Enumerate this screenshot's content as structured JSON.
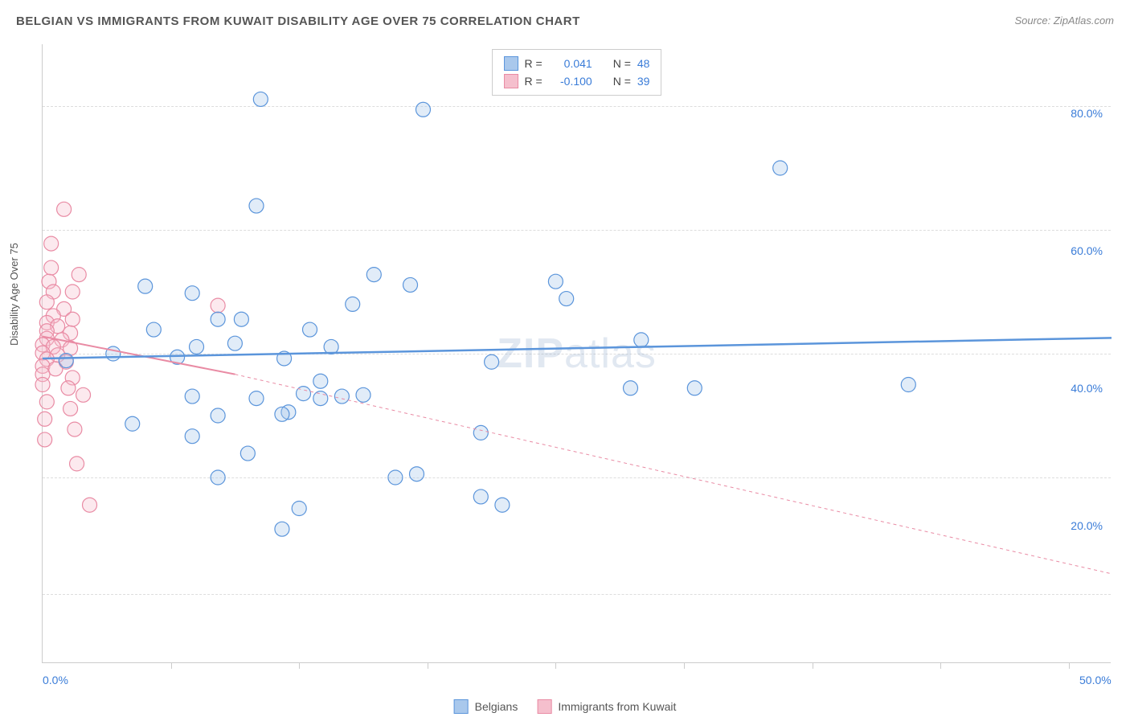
{
  "header": {
    "title": "BELGIAN VS IMMIGRANTS FROM KUWAIT DISABILITY AGE OVER 75 CORRELATION CHART",
    "source": "Source: ZipAtlas.com"
  },
  "chart": {
    "type": "scatter",
    "ylabel": "Disability Age Over 75",
    "background_color": "#ffffff",
    "grid_color": "#dddddd",
    "axis_color": "#cccccc",
    "watermark": "ZIPatlas",
    "xlim": [
      0,
      50
    ],
    "ylim": [
      0,
      90
    ],
    "x_tick_positions": [
      6,
      12,
      18,
      24,
      30,
      36,
      42,
      48
    ],
    "x_tick_labels": [
      {
        "pos": 0,
        "text": "0.0%"
      },
      {
        "pos": 50,
        "text": "50.0%"
      }
    ],
    "y_tick_labels": [
      {
        "pos": 20,
        "text": "20.0%"
      },
      {
        "pos": 40,
        "text": "40.0%"
      },
      {
        "pos": 60,
        "text": "60.0%"
      },
      {
        "pos": 80,
        "text": "80.0%"
      }
    ],
    "y_gridlines": [
      10,
      27,
      45,
      63,
      81
    ],
    "marker_radius": 9,
    "marker_fill_opacity": 0.35,
    "series": [
      {
        "name": "Belgians",
        "color_stroke": "#5b95db",
        "color_fill": "#a9c8ec",
        "R": "0.041",
        "N": "48",
        "points": [
          [
            10.2,
            82.0
          ],
          [
            17.8,
            80.5
          ],
          [
            34.5,
            72.0
          ],
          [
            10.0,
            66.5
          ],
          [
            4.8,
            54.8
          ],
          [
            7.0,
            53.8
          ],
          [
            15.5,
            56.5
          ],
          [
            17.2,
            55.0
          ],
          [
            14.5,
            52.2
          ],
          [
            8.2,
            50.0
          ],
          [
            9.3,
            50.0
          ],
          [
            5.2,
            48.5
          ],
          [
            12.5,
            48.5
          ],
          [
            9.0,
            46.5
          ],
          [
            7.2,
            46.0
          ],
          [
            13.5,
            46.0
          ],
          [
            3.3,
            45.0
          ],
          [
            6.3,
            44.5
          ],
          [
            11.3,
            44.3
          ],
          [
            1.1,
            44.0
          ],
          [
            13.0,
            41.0
          ],
          [
            7.0,
            38.8
          ],
          [
            10.0,
            38.5
          ],
          [
            12.2,
            39.2
          ],
          [
            13.0,
            38.5
          ],
          [
            14.0,
            38.8
          ],
          [
            11.5,
            36.5
          ],
          [
            11.2,
            36.2
          ],
          [
            8.2,
            36.0
          ],
          [
            4.2,
            34.8
          ],
          [
            7.0,
            33.0
          ],
          [
            9.6,
            30.5
          ],
          [
            8.2,
            27.0
          ],
          [
            16.5,
            27.0
          ],
          [
            12.0,
            22.5
          ],
          [
            11.2,
            19.5
          ],
          [
            15.0,
            39.0
          ],
          [
            17.5,
            27.5
          ],
          [
            20.5,
            33.5
          ],
          [
            20.5,
            24.2
          ],
          [
            21.0,
            43.8
          ],
          [
            21.5,
            23.0
          ],
          [
            24.0,
            55.5
          ],
          [
            24.5,
            53.0
          ],
          [
            27.5,
            40.0
          ],
          [
            28.0,
            47.0
          ],
          [
            30.5,
            40.0
          ],
          [
            40.5,
            40.5
          ]
        ],
        "regression": {
          "x1": 0,
          "y1": 44.3,
          "x2": 50,
          "y2": 47.3,
          "width": 2.5,
          "dash": "none"
        }
      },
      {
        "name": "Immigrants from Kuwait",
        "color_stroke": "#e98ba4",
        "color_fill": "#f5bfcd",
        "R": "-0.100",
        "N": "39",
        "points": [
          [
            1.0,
            66.0
          ],
          [
            0.4,
            61.0
          ],
          [
            0.4,
            57.5
          ],
          [
            1.7,
            56.5
          ],
          [
            0.3,
            55.5
          ],
          [
            0.5,
            54.0
          ],
          [
            1.4,
            54.0
          ],
          [
            0.2,
            52.5
          ],
          [
            1.0,
            51.5
          ],
          [
            0.5,
            50.5
          ],
          [
            1.4,
            50.0
          ],
          [
            0.2,
            49.5
          ],
          [
            0.7,
            49.0
          ],
          [
            0.2,
            48.3
          ],
          [
            1.3,
            48.0
          ],
          [
            0.2,
            47.2
          ],
          [
            0.9,
            47.0
          ],
          [
            0.0,
            46.3
          ],
          [
            0.5,
            46.0
          ],
          [
            1.3,
            45.8
          ],
          [
            0.0,
            45.1
          ],
          [
            0.7,
            44.8
          ],
          [
            0.2,
            44.2
          ],
          [
            1.1,
            43.8
          ],
          [
            0.0,
            43.2
          ],
          [
            0.6,
            42.8
          ],
          [
            0.0,
            42.0
          ],
          [
            1.4,
            41.5
          ],
          [
            0.0,
            40.5
          ],
          [
            1.2,
            40.0
          ],
          [
            1.9,
            39.0
          ],
          [
            0.2,
            38.0
          ],
          [
            1.3,
            37.0
          ],
          [
            0.1,
            35.5
          ],
          [
            1.5,
            34.0
          ],
          [
            0.1,
            32.5
          ],
          [
            1.6,
            29.0
          ],
          [
            2.2,
            23.0
          ],
          [
            8.2,
            52.0
          ]
        ],
        "regression_solid": {
          "x1": 0,
          "y1": 47.5,
          "x2": 9,
          "y2": 42.0,
          "width": 2,
          "dash": "none"
        },
        "regression_dashed": {
          "x1": 9,
          "y1": 42.0,
          "x2": 50,
          "y2": 13.0,
          "width": 1,
          "dash": "4,4"
        }
      }
    ],
    "legend_top": {
      "rows": [
        {
          "swatch": 0,
          "R_label": "R =",
          "N_label": "N ="
        },
        {
          "swatch": 1,
          "R_label": "R =",
          "N_label": "N ="
        }
      ]
    },
    "legend_bottom": [
      {
        "swatch": 0
      },
      {
        "swatch": 1
      }
    ]
  }
}
